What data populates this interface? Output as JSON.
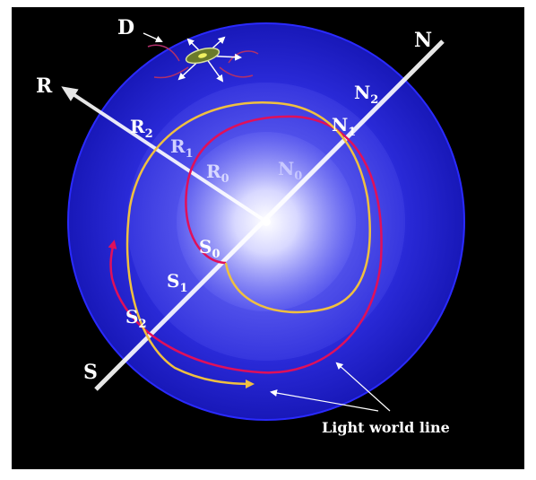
{
  "diagram": {
    "labels": {
      "D": "D",
      "N": "N",
      "R": "R",
      "S": "S",
      "N2": {
        "base": "N",
        "sub": "2"
      },
      "N1": {
        "base": "N",
        "sub": "1"
      },
      "N0": {
        "base": "N",
        "sub": "0"
      },
      "R2": {
        "base": "R",
        "sub": "2"
      },
      "R1": {
        "base": "R",
        "sub": "1"
      },
      "R0": {
        "base": "R",
        "sub": "0"
      },
      "S0": {
        "base": "S",
        "sub": "0"
      },
      "S1": {
        "base": "S",
        "sub": "1"
      },
      "S2": {
        "base": "S",
        "sub": "2"
      }
    },
    "caption": "Light world line",
    "colors": {
      "background": "#000000",
      "outer_sphere": "#1c1cc8",
      "sphere_edge": "#2a2aff",
      "core_glow": "#ffffff",
      "red_path": "#e0105a",
      "yellow_path": "#f0c040",
      "axis": "#ffffff"
    }
  }
}
